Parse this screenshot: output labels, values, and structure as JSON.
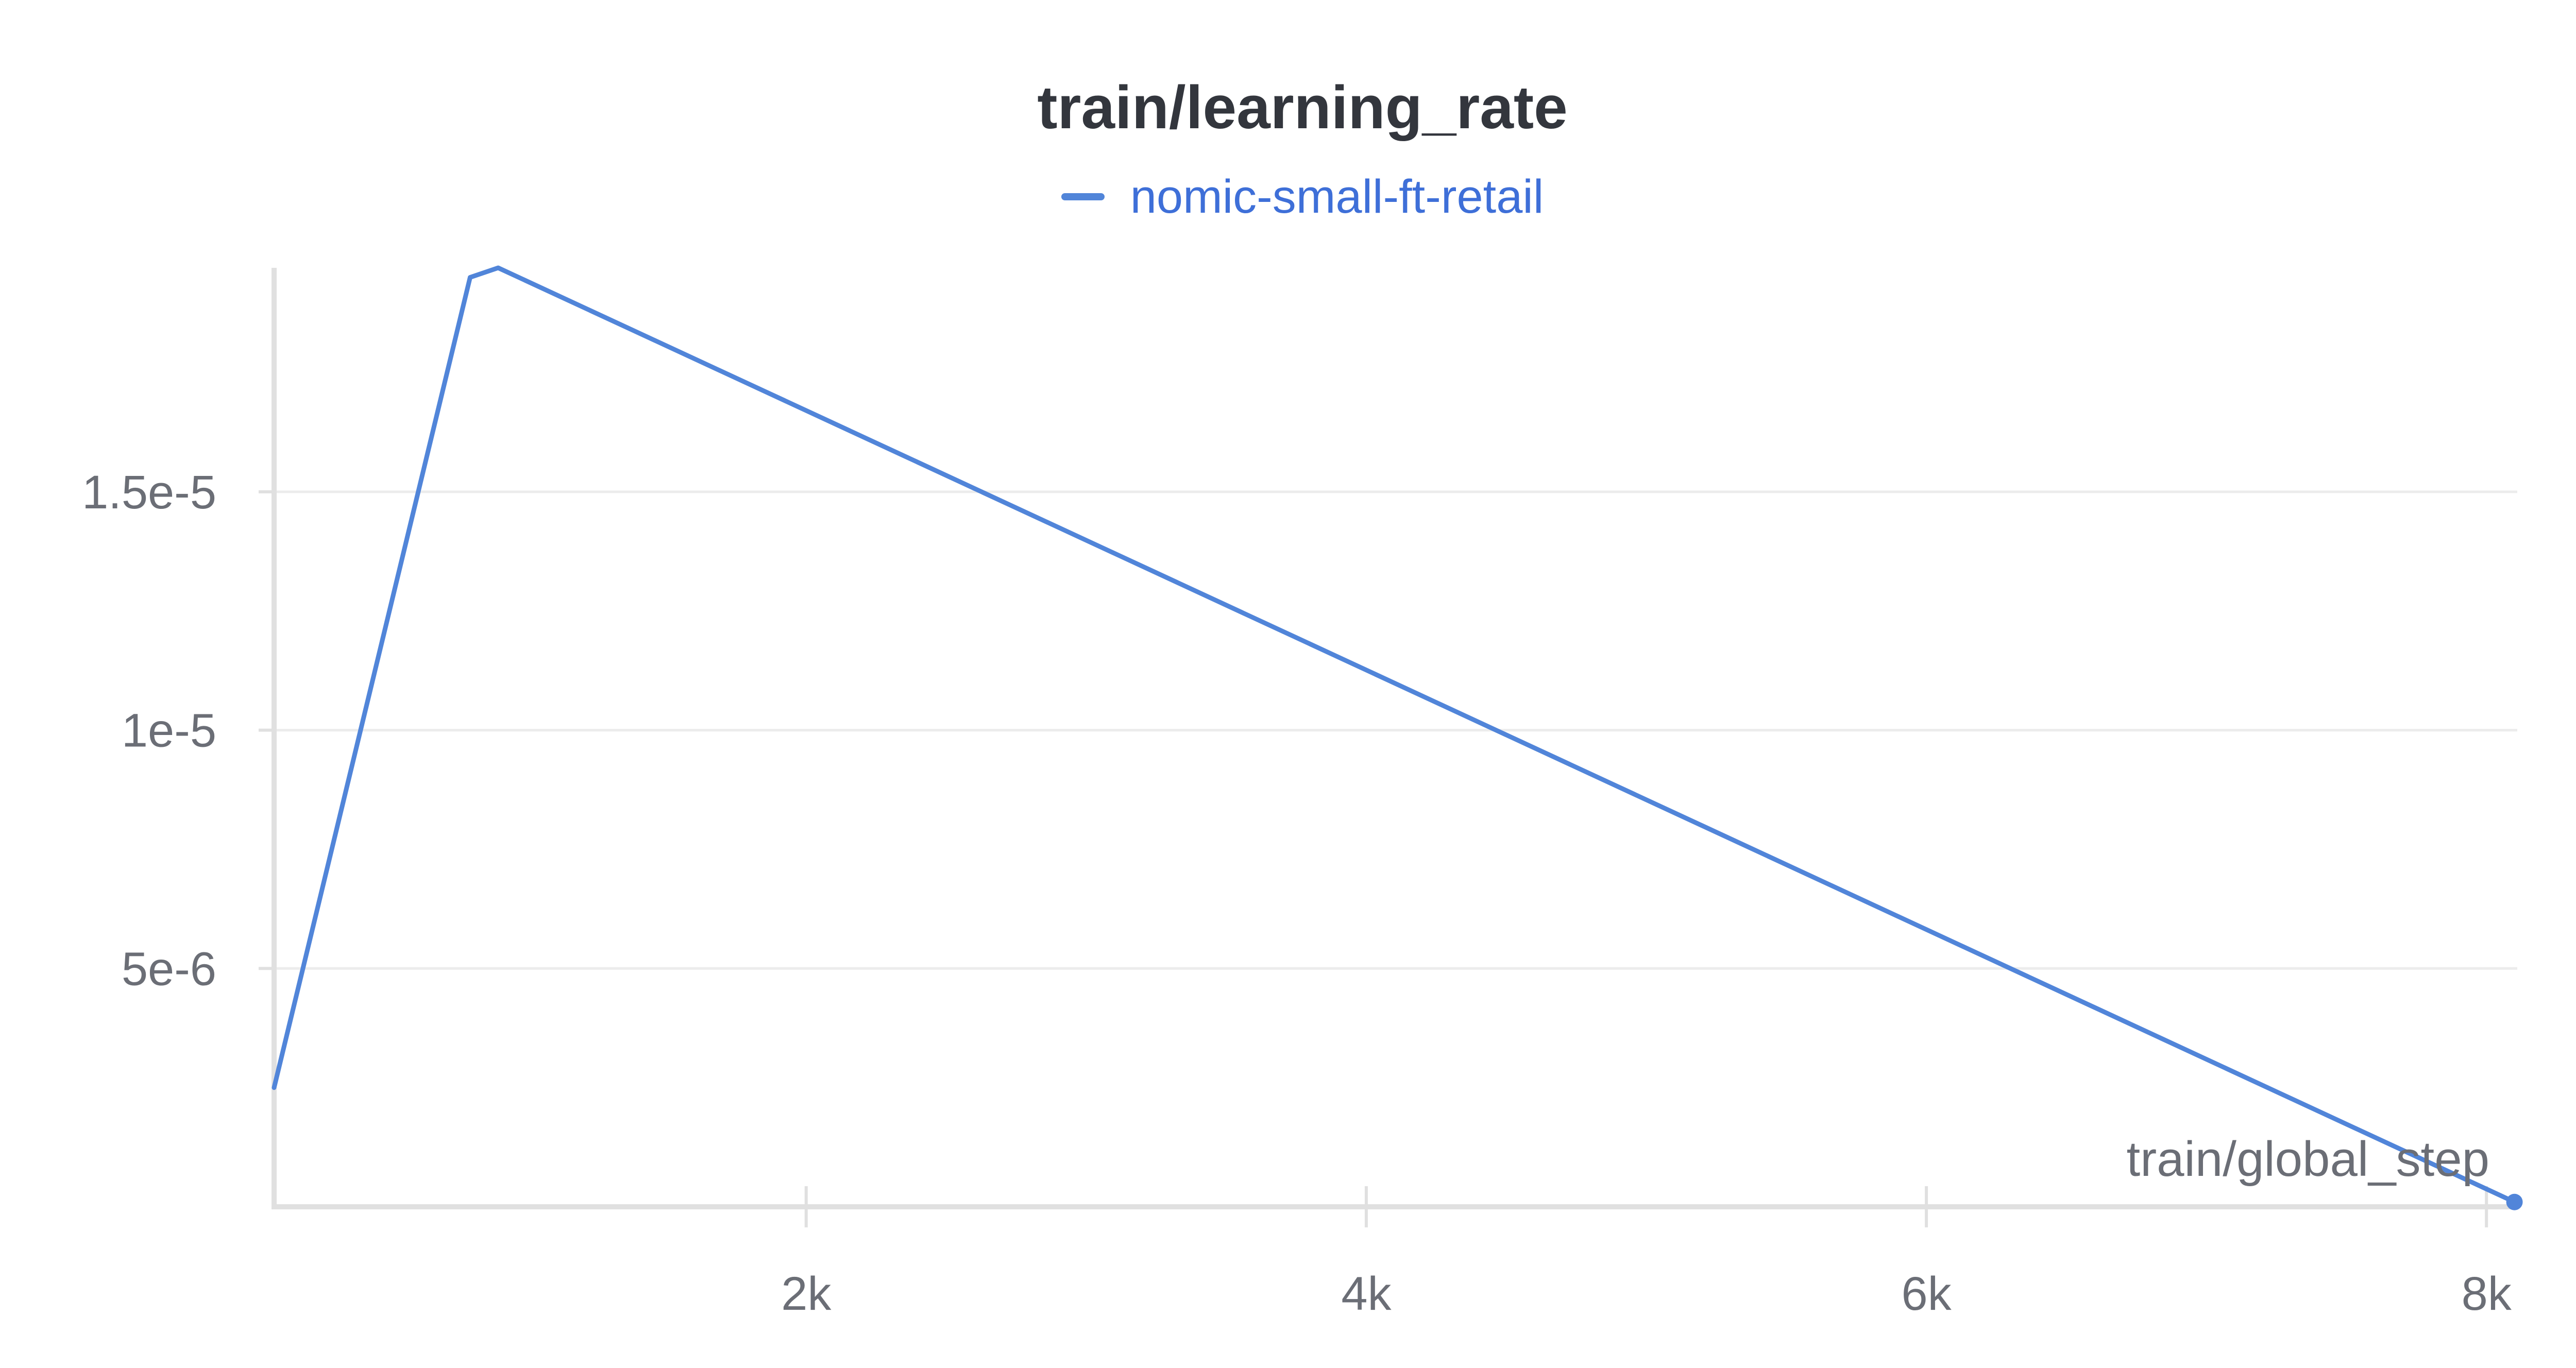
{
  "chart_data": {
    "type": "line",
    "title": "train/learning_rate",
    "xlabel": "train/global_step",
    "ylabel": "",
    "x_ticks": [
      {
        "value": 2000,
        "label": "2k"
      },
      {
        "value": 4000,
        "label": "4k"
      },
      {
        "value": 6000,
        "label": "6k"
      },
      {
        "value": 8000,
        "label": "8k"
      }
    ],
    "y_ticks": [
      {
        "value": 5e-06,
        "label": "5e-6"
      },
      {
        "value": 1e-05,
        "label": "1e-5"
      },
      {
        "value": 1.5e-05,
        "label": "1.5e-5"
      }
    ],
    "xlim": [
      100,
      8110
    ],
    "ylim": [
      0,
      1.97e-05
    ],
    "grid": true,
    "legend_position": "top-center",
    "series": [
      {
        "name": "nomic-small-ft-retail",
        "color": "#5185d9",
        "points": [
          {
            "x": 100,
            "y": 2.5e-06
          },
          {
            "x": 800,
            "y": 1.95e-05
          },
          {
            "x": 900,
            "y": 1.97e-05
          },
          {
            "x": 8100,
            "y": 1e-07
          }
        ]
      }
    ]
  },
  "colors": {
    "legend_text": "#3e6fd8",
    "axis": "#e0e0e0",
    "grid": "#ececec"
  }
}
